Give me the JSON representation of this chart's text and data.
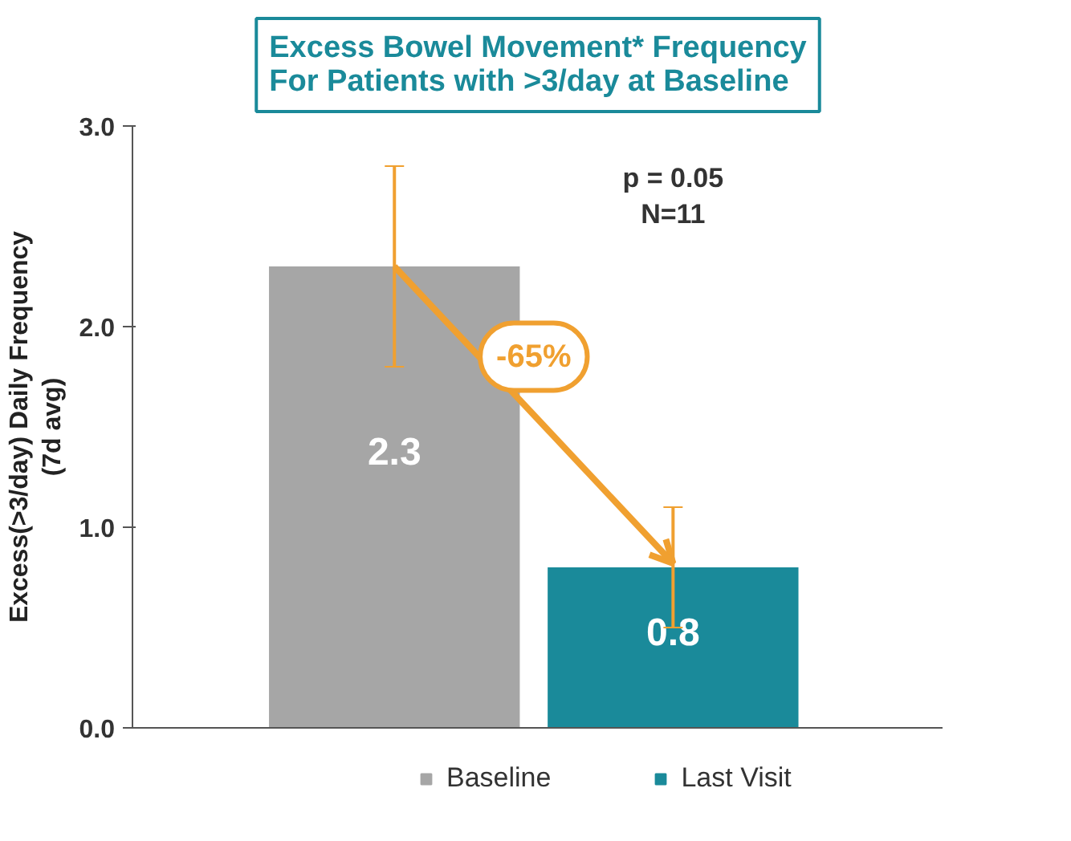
{
  "chart_data": {
    "type": "bar",
    "title": "Excess Bowel Movement* Frequency\nFor Patients with >3/day at Baseline",
    "ylabel": "Excess(>3/day) Daily Frequency\n(7d avg)",
    "categories": [
      null,
      null
    ],
    "series": [
      {
        "name": "Baseline",
        "color": "#a6a6a6",
        "values": [
          2.3,
          null
        ],
        "errors": [
          [
            1.8,
            2.8
          ],
          null
        ]
      },
      {
        "name": "Last Visit",
        "color": "#1a8a9a",
        "values": [
          null,
          0.8
        ],
        "errors": [
          null,
          [
            0.5,
            1.1
          ]
        ]
      }
    ],
    "ylim": [
      0,
      3
    ],
    "yticks": [
      {
        "value": 0,
        "label": "0.0"
      },
      {
        "value": 1,
        "label": "1.0"
      },
      {
        "value": 2,
        "label": "2.0"
      },
      {
        "value": 3,
        "label": "3.0"
      }
    ],
    "data_labels": true,
    "legend": "bottom",
    "grid": false,
    "annotations": [
      "p = 0.05\nN=11",
      "-65%"
    ]
  }
}
